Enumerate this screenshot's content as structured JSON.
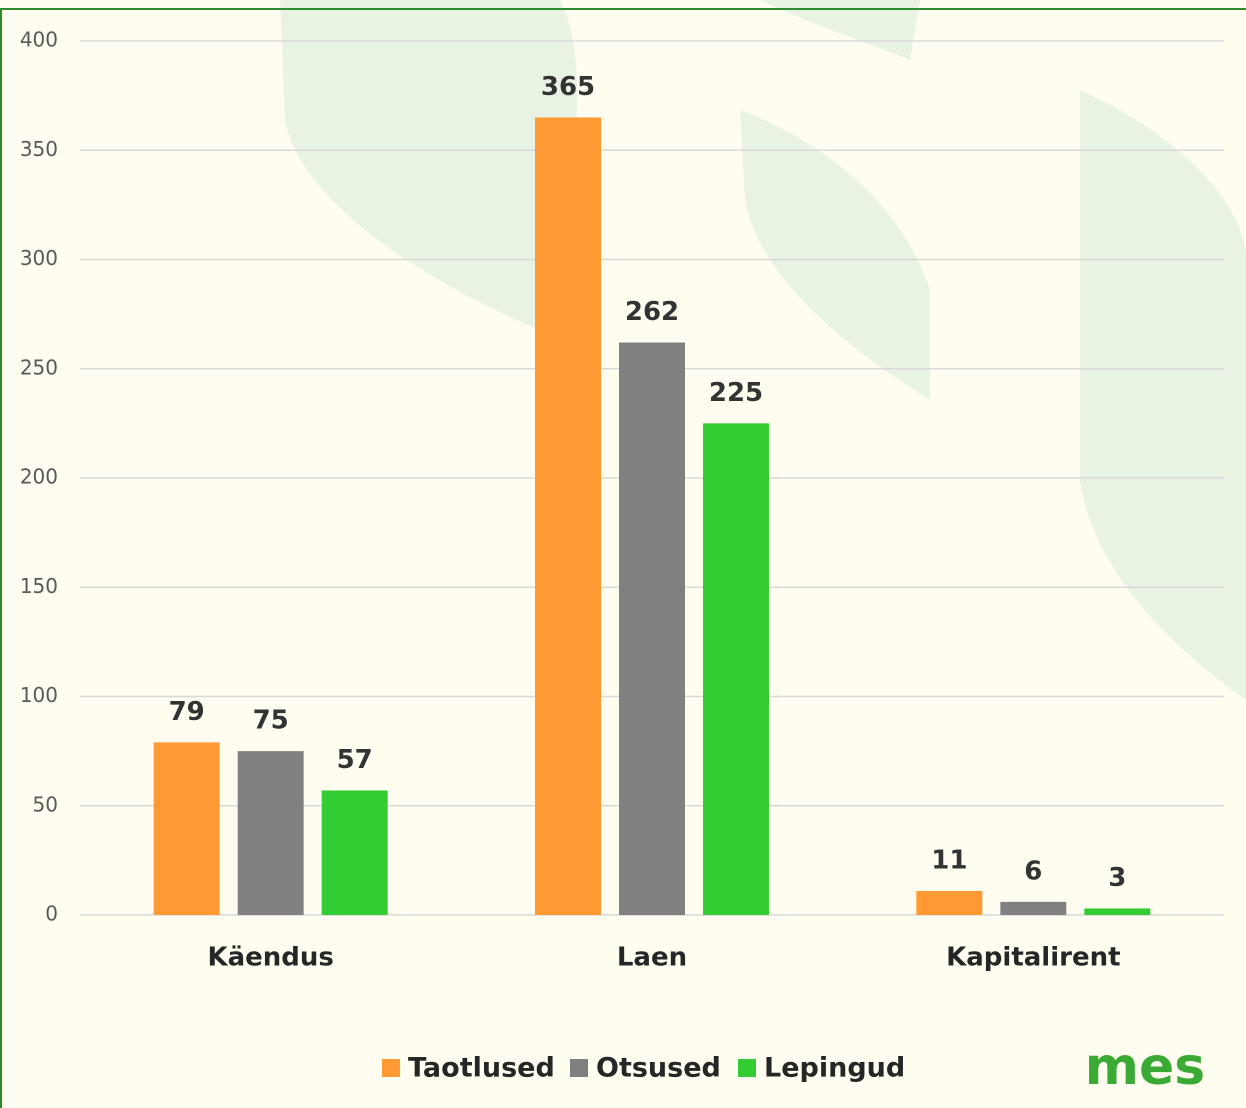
{
  "chart_data": {
    "type": "bar",
    "categories": [
      "Käendus",
      "Laen",
      "Kapitalirent"
    ],
    "series": [
      {
        "name": "Taotlused",
        "color": "#ff9933",
        "values": [
          79,
          365,
          11
        ]
      },
      {
        "name": "Otsused",
        "color": "#808080",
        "values": [
          75,
          262,
          6
        ]
      },
      {
        "name": "Lepingud",
        "color": "#33cc33",
        "values": [
          57,
          225,
          3
        ]
      }
    ],
    "ylim": [
      0,
      400
    ],
    "yticks": [
      0,
      50,
      100,
      150,
      200,
      250,
      300,
      350,
      400
    ],
    "grid": true,
    "legend": "bottom"
  },
  "logo": "mes"
}
